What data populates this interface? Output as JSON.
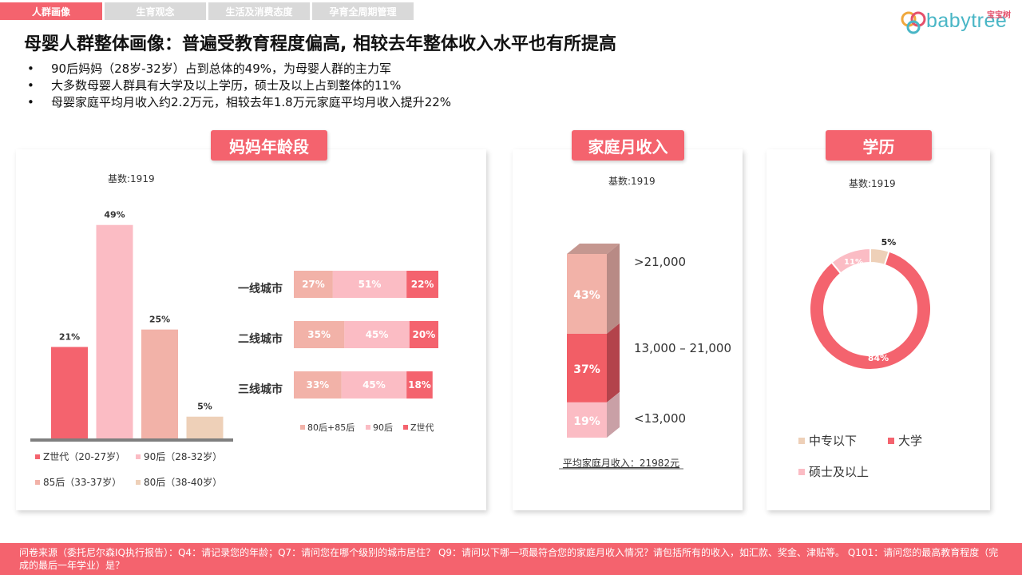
{
  "tabs": [
    {
      "label": "人群画像",
      "active": true
    },
    {
      "label": "生育观念",
      "active": false
    },
    {
      "label": "生活及消费态度",
      "active": false
    },
    {
      "label": "孕育全周期管理",
      "active": false
    }
  ],
  "logo": {
    "text": "babytree",
    "cn": "宝宝树"
  },
  "title": "母婴人群整体画像：普遍受教育程度偏高, 相较去年整体收入水平也有所提高",
  "bullets": [
    "90后妈妈（28岁-32岁）占到总体的49%，为母婴人群的主力军",
    "大多数母婴人群具有大学及以上学历，硕士及以上占到整体的11%",
    "母婴家庭平均月收入约2.2万元，相较去年1.8万元家庭平均月收入提升22%"
  ],
  "panels": {
    "age": {
      "heading": "妈妈年龄段",
      "base": "基数:1919"
    },
    "income": {
      "heading": "家庭月收入",
      "base": "基数:1919",
      "avg": "平均家庭月收入：21982元"
    },
    "edu": {
      "heading": "学历",
      "base": "基数:1919"
    }
  },
  "chart_data": [
    {
      "type": "bar",
      "categories": [
        "Z世代（20-27岁）",
        "90后（28-32岁）",
        "85后（33-37岁）",
        "80后（38-40岁）"
      ],
      "values": [
        21,
        49,
        25,
        5
      ],
      "labels": [
        "21%",
        "49%",
        "25%",
        "5%"
      ],
      "colors": [
        "#f4636e",
        "#fbbcc4",
        "#f2b2a8",
        "#eed0b8"
      ],
      "ylim": [
        0,
        55
      ]
    },
    {
      "type": "bar",
      "stacked": true,
      "horizontal": true,
      "categories": [
        "一线城市",
        "二线城市",
        "三线城市"
      ],
      "series": [
        {
          "name": "80后+85后",
          "values": [
            27,
            35,
            33
          ],
          "labels": [
            "27%",
            "35%",
            "33%"
          ],
          "color": "#f2b2a8"
        },
        {
          "name": "90后",
          "values": [
            51,
            45,
            45
          ],
          "labels": [
            "51%",
            "45%",
            "45%"
          ],
          "color": "#fbbcc4"
        },
        {
          "name": "Z世代",
          "values": [
            22,
            20,
            18
          ],
          "labels": [
            "22%",
            "20%",
            "18%"
          ],
          "color": "#f4636e"
        }
      ]
    },
    {
      "type": "bar",
      "stacked": true,
      "categories": [
        ">21,000",
        "13,000 – 21,000",
        "<13,000"
      ],
      "values": [
        43,
        37,
        19
      ],
      "labels": [
        "43%",
        "37%",
        "19%"
      ],
      "colors": [
        "#f2b2a8",
        "#f25e66",
        "#fbbcc4"
      ]
    },
    {
      "type": "pie",
      "donut": true,
      "categories": [
        "中专以下",
        "大学",
        "硕士及以上"
      ],
      "values": [
        5,
        84,
        11
      ],
      "labels": [
        "5%",
        "84%",
        "11%"
      ],
      "colors": [
        "#eed0b8",
        "#f4636e",
        "#fbbcc4"
      ],
      "legend": "bottom"
    }
  ],
  "footer": "问卷来源（委托尼尔森IQ执行报告）：Q4：请记录您的年龄；Q7：请问您在哪个级别的城市居住？ Q9：请问以下哪一项最符合您的家庭月收入情况？请包括所有的收入，如汇款、奖金、津贴等。 Q101：请问您的最高教育程度（完成的最后一年学业）是？"
}
